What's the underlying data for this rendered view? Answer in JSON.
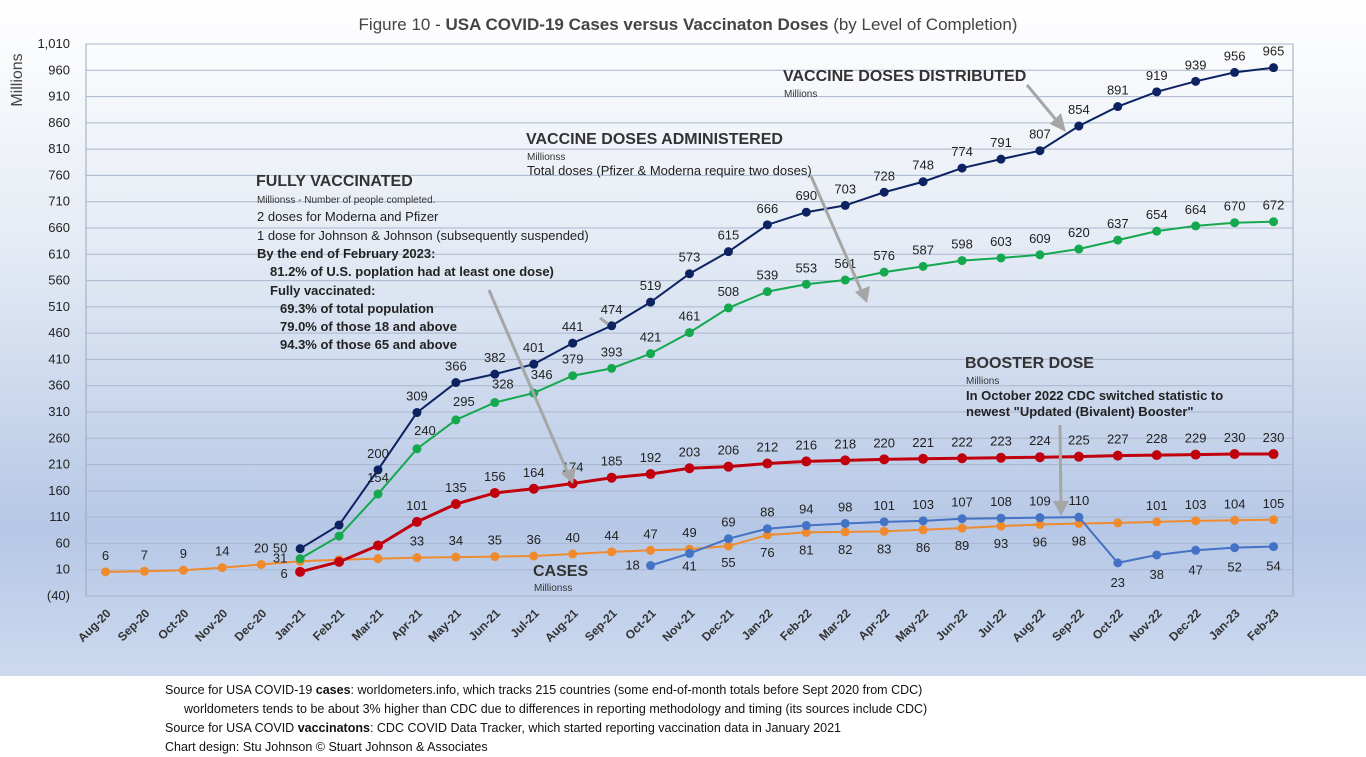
{
  "title": {
    "prefix": "Figure 10 - ",
    "bold": "USA COVID-19 Cases versus Vaccinaton Doses",
    "suffix": " (by Level of Completion)"
  },
  "chart_data": {
    "type": "line",
    "ylabel": "Millions",
    "ylim": [
      -40,
      1010
    ],
    "yticks": [
      "1,010",
      "960",
      "910",
      "860",
      "810",
      "760",
      "710",
      "660",
      "610",
      "560",
      "510",
      "460",
      "410",
      "360",
      "310",
      "260",
      "210",
      "160",
      "110",
      "60",
      "10",
      "(40)"
    ],
    "categories": [
      "Aug-20",
      "Sep-20",
      "Oct-20",
      "Nov-20",
      "Dec-20",
      "Jan-21",
      "Feb-21",
      "Mar-21",
      "Apr-21",
      "May-21",
      "Jun-21",
      "Jul-21",
      "Aug-21",
      "Sep-21",
      "Oct-21",
      "Nov-21",
      "Dec-21",
      "Jan-22",
      "Feb-22",
      "Mar-22",
      "Apr-22",
      "May-22",
      "Jun-22",
      "Jul-22",
      "Aug-22",
      "Sep-22",
      "Oct-22",
      "Nov-22",
      "Dec-22",
      "Jan-23",
      "Feb-23"
    ],
    "grid": true,
    "series": [
      {
        "name": "VACCINE DOSES DISTRIBUTED",
        "color": "#0d2261",
        "values": [
          null,
          null,
          null,
          null,
          null,
          50,
          95,
          200,
          309,
          366,
          382,
          401,
          441,
          474,
          519,
          573,
          615,
          666,
          690,
          703,
          728,
          748,
          774,
          791,
          807,
          854,
          891,
          919,
          939,
          956,
          965
        ],
        "labels": [
          "",
          "",
          "",
          "",
          "",
          "50",
          "",
          "200",
          "309",
          "366",
          "382",
          "401",
          "441",
          "474",
          "519",
          "573",
          "615",
          "666",
          "690",
          "703",
          "728",
          "748",
          "774",
          "791",
          "807",
          "854",
          "891",
          "919",
          "939",
          "956",
          "965"
        ]
      },
      {
        "name": "VACCINE DOSES ADMINISTERED",
        "color": "#14a84f",
        "values": [
          null,
          null,
          null,
          null,
          null,
          31,
          74,
          154,
          240,
          295,
          328,
          346,
          379,
          393,
          421,
          461,
          508,
          539,
          553,
          561,
          576,
          587,
          598,
          603,
          609,
          620,
          637,
          654,
          664,
          670,
          672
        ],
        "labels": [
          "",
          "",
          "",
          "",
          "",
          "31",
          "",
          "154",
          "240",
          "295",
          "328",
          "346",
          "379",
          "393",
          "421",
          "461",
          "508",
          "539",
          "553",
          "561",
          "576",
          "587",
          "598",
          "603",
          "609",
          "620",
          "637",
          "654",
          "664",
          "670",
          "672"
        ]
      },
      {
        "name": "FULLY VACCINATED",
        "color": "#c0000c",
        "values": [
          null,
          null,
          null,
          null,
          null,
          6,
          25,
          56,
          101,
          135,
          156,
          164,
          174,
          185,
          192,
          203,
          206,
          212,
          216,
          218,
          220,
          221,
          222,
          223,
          224,
          225,
          227,
          228,
          229,
          230,
          230
        ],
        "labels": [
          "",
          "",
          "",
          "",
          "",
          "6",
          "",
          "",
          "101",
          "135",
          "156",
          "164",
          "174",
          "185",
          "192",
          "203",
          "206",
          "212",
          "216",
          "218",
          "220",
          "221",
          "222",
          "223",
          "224",
          "225",
          "227",
          "228",
          "229",
          "230",
          "230"
        ]
      },
      {
        "name": "BOOSTER DOSE",
        "color": "#4472c4",
        "values": [
          null,
          null,
          null,
          null,
          null,
          null,
          null,
          null,
          null,
          null,
          null,
          null,
          null,
          null,
          18,
          41,
          69,
          88,
          94,
          98,
          101,
          103,
          107,
          108,
          109,
          110,
          23,
          38,
          47,
          52,
          54
        ],
        "labels": [
          "",
          "",
          "",
          "",
          "",
          "",
          "",
          "",
          "",
          "",
          "",
          "",
          "",
          "",
          "18",
          "41",
          "69",
          "88",
          "94",
          "98",
          "101",
          "103",
          "107",
          "108",
          "109",
          "110",
          "23",
          "38",
          "47",
          "52",
          "54"
        ]
      },
      {
        "name": "CASES",
        "color": "#f08a2c",
        "values": [
          6,
          7,
          9,
          14,
          20,
          26,
          29,
          31,
          33,
          34,
          35,
          36,
          40,
          44,
          47,
          49,
          55,
          76,
          81,
          82,
          83,
          86,
          89,
          93,
          96,
          98,
          99,
          101,
          103,
          104,
          105
        ],
        "labels": [
          "6",
          "7",
          "9",
          "14",
          "20",
          "",
          "",
          "",
          "33",
          "34",
          "35",
          "36",
          "40",
          "44",
          "47",
          "49",
          "55",
          "76",
          "81",
          "82",
          "83",
          "86",
          "89",
          "93",
          "96",
          "98",
          "",
          "101",
          "103",
          "104",
          "105"
        ]
      }
    ]
  },
  "annotations": {
    "distributed": {
      "head": "VACCINE DOSES DISTRIBUTED",
      "unit": "Millions"
    },
    "administered": {
      "head": "VACCINE DOSES ADMINISTERED",
      "unit": "Millionss",
      "note": "Total doses (Pfizer & Moderna require two doses)"
    },
    "fully": {
      "head": "FULLY VACCINATED",
      "unit": "Millionss - Number of people completed.",
      "line1": "2 doses for Moderna and Pfizer",
      "line2": "1 dose for Johnson & Johnson (subsequently suspended)",
      "line3": "By the end of February 2023:",
      "line4": "81.2% of U.S. poplation had at least one dose)",
      "line5": "Fully vaccinated:",
      "line6": "69.3% of total population",
      "line7": "79.0% of those 18 and above",
      "line8": "94.3% of those 65 and above"
    },
    "booster": {
      "head": "BOOSTER DOSE",
      "unit": "Millions",
      "line1": "In October 2022 CDC switched statistic to",
      "line2": "newest \"Updated (Bivalent) Booster\""
    },
    "cases": {
      "head": "CASES",
      "unit": "Millionss"
    }
  },
  "footer": {
    "line1_pre": "Source for USA COVID-19 ",
    "line1_bold": "cases",
    "line1_post": ": worldometers.info, which tracks 215 countries  (some end-of-month totals before Sept 2020 from CDC)",
    "line2": "worldometers tends to be about 3% higher than CDC due to differences in reporting methodology and timing (its sources include CDC)",
    "line3_pre": "Source for USA COVID ",
    "line3_bold": "vaccinatons",
    "line3_post": ": CDC COVID Data Tracker, which started reporting vaccination data in January 2021",
    "line4": "Chart design: Stu Johnson © Stuart Johnson & Associates"
  }
}
